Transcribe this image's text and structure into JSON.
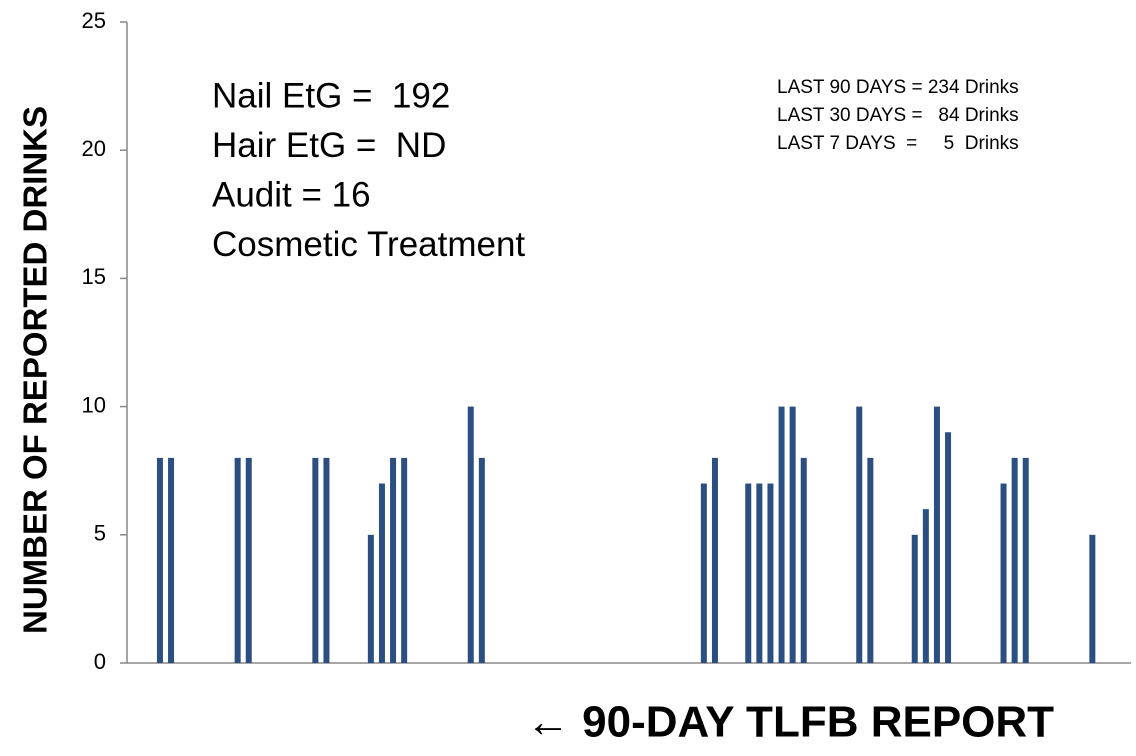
{
  "chart_data": {
    "type": "bar",
    "ylabel": "NUMBER OF REPORTED DRINKS",
    "xlabel": "← 90-DAY TLFB REPORT",
    "annotations": [
      "Nail EtG =  192",
      "Hair EtG =  ND",
      "Audit = 16",
      "Cosmetic Treatment"
    ],
    "summary": [
      "LAST 90 DAYS = 234 Drinks",
      "LAST 30 DAYS =   84 Drinks",
      "LAST 7 DAYS  =     5  Drinks"
    ],
    "color": "#2b4f81",
    "categories": [
      null,
      null,
      null,
      null,
      null,
      null,
      null,
      null,
      null,
      null,
      null,
      null,
      null,
      null,
      null,
      null,
      null,
      null,
      null,
      null,
      null,
      null,
      null,
      null,
      null,
      null,
      null,
      null,
      null,
      null,
      null,
      null,
      null,
      null,
      null,
      null,
      null,
      null,
      null,
      null,
      null,
      null,
      null,
      null,
      null,
      null,
      null,
      null,
      null,
      null,
      null,
      null,
      null,
      null,
      null,
      null,
      null,
      null,
      null,
      null,
      null,
      null,
      null,
      null,
      null,
      null,
      null,
      null,
      null,
      null,
      null,
      null,
      null,
      null,
      null,
      null,
      null,
      null,
      null,
      null,
      null,
      null,
      null,
      null,
      null,
      null,
      null,
      null,
      null,
      null
    ],
    "values": [
      0,
      0,
      8,
      8,
      0,
      0,
      0,
      0,
      0,
      8,
      8,
      0,
      0,
      0,
      0,
      0,
      8,
      8,
      0,
      0,
      0,
      5,
      7,
      8,
      8,
      0,
      0,
      0,
      0,
      0,
      10,
      8,
      0,
      0,
      0,
      0,
      0,
      0,
      0,
      0,
      0,
      0,
      0,
      0,
      0,
      0,
      0,
      0,
      0,
      0,
      0,
      7,
      8,
      0,
      0,
      7,
      7,
      7,
      10,
      10,
      8,
      0,
      0,
      0,
      0,
      10,
      8,
      0,
      0,
      0,
      5,
      6,
      10,
      9,
      0,
      0,
      0,
      0,
      7,
      8,
      8,
      0,
      0,
      0,
      0,
      0,
      5,
      0,
      0,
      0
    ],
    "ylim": [
      0,
      25
    ],
    "yticks": [
      0,
      5,
      10,
      15,
      20,
      25
    ]
  }
}
